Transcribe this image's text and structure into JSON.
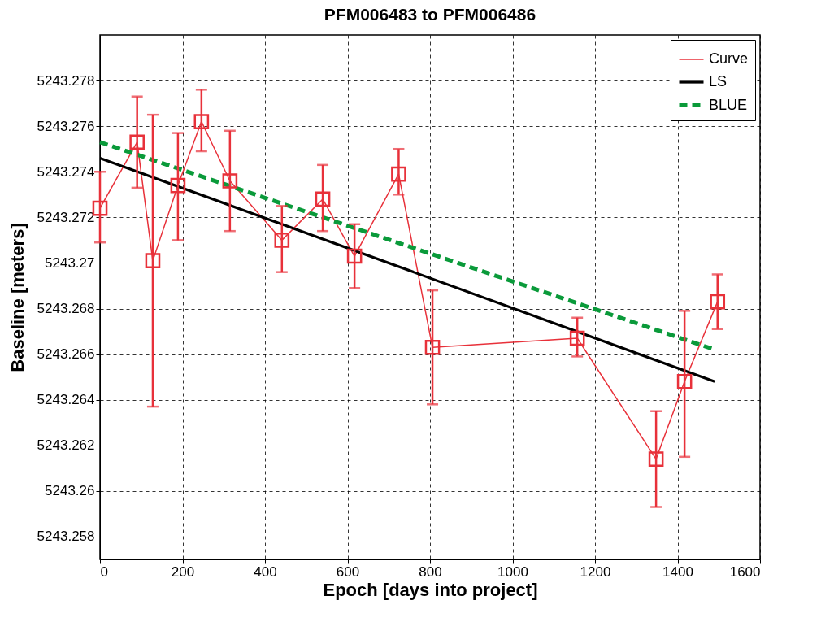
{
  "chart_data": {
    "type": "line",
    "title": "PFM006483 to PFM006486",
    "xlabel": "Epoch [days into project]",
    "ylabel": "Baseline [meters]",
    "xlim": [
      0,
      1600
    ],
    "xticks": [
      0,
      200,
      400,
      600,
      800,
      1000,
      1200,
      1400,
      1600
    ],
    "ylim": [
      5243.257,
      5243.28
    ],
    "yticks": [
      5243.258,
      5243.26,
      5243.262,
      5243.264,
      5243.266,
      5243.268,
      5243.27,
      5243.272,
      5243.274,
      5243.276,
      5243.278
    ],
    "grid": true,
    "legend": "top right",
    "series": [
      {
        "name": "Curve",
        "color": "#e8313a",
        "marker": "square",
        "line_style": "solid",
        "x": [
          0,
          90,
          128,
          189,
          246,
          315,
          441,
          540,
          617,
          724,
          806,
          1157,
          1348,
          1417,
          1497
        ],
        "values": [
          5243.2724,
          5243.2753,
          5243.2701,
          5243.2734,
          5243.2762,
          5243.2736,
          5243.271,
          5243.2728,
          5243.2703,
          5243.2739,
          5243.2663,
          5243.2667,
          5243.2614,
          5243.2648,
          5243.2683
        ],
        "errors": [
          [
            5243.2709,
            5243.274
          ],
          [
            5243.2733,
            5243.2773
          ],
          [
            5243.2637,
            5243.2765
          ],
          [
            5243.271,
            5243.2757
          ],
          [
            5243.2749,
            5243.2776
          ],
          [
            5243.2714,
            5243.2758
          ],
          [
            5243.2696,
            5243.2725
          ],
          [
            5243.2714,
            5243.2743
          ],
          [
            5243.2689,
            5243.2717
          ],
          [
            5243.273,
            5243.275
          ],
          [
            5243.2638,
            5243.2688
          ],
          [
            5243.2659,
            5243.2676
          ],
          [
            5243.2593,
            5243.2635
          ],
          [
            5243.2615,
            5243.2679
          ],
          [
            5243.2671,
            5243.2695
          ]
        ]
      },
      {
        "name": "LS",
        "color": "#000000",
        "marker": "none",
        "line_style": "solid",
        "x": [
          0,
          1490
        ],
        "values": [
          5243.2746,
          5243.2648
        ]
      },
      {
        "name": "BLUE",
        "color": "#0a9a3a",
        "marker": "none",
        "line_style": "dashed",
        "x": [
          0,
          1490
        ],
        "values": [
          5243.2753,
          5243.2662
        ]
      }
    ]
  }
}
